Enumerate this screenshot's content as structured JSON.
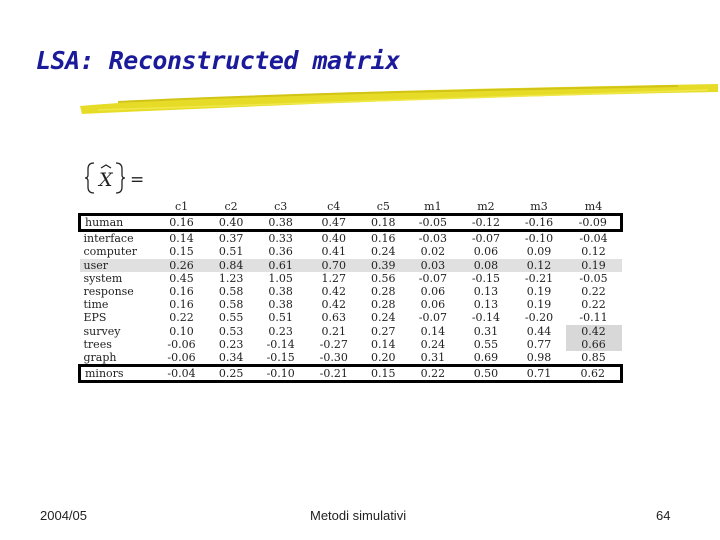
{
  "slide": {
    "title": "LSA: Reconstructed matrix",
    "formula_symbol": "X",
    "formula_rhs": "="
  },
  "table": {
    "columns": [
      "c1",
      "c2",
      "c3",
      "c4",
      "c5",
      "m1",
      "m2",
      "m3",
      "m4"
    ],
    "rows": [
      {
        "term": "human",
        "values": [
          "0.16",
          "0.40",
          "0.38",
          "0.47",
          "0.18",
          "-0.05",
          "-0.12",
          "-0.16",
          "-0.09"
        ]
      },
      {
        "term": "interface",
        "values": [
          "0.14",
          "0.37",
          "0.33",
          "0.40",
          "0.16",
          "-0.03",
          "-0.07",
          "-0.10",
          "-0.04"
        ]
      },
      {
        "term": "computer",
        "values": [
          "0.15",
          "0.51",
          "0.36",
          "0.41",
          "0.24",
          "0.02",
          "0.06",
          "0.09",
          "0.12"
        ]
      },
      {
        "term": "user",
        "values": [
          "0.26",
          "0.84",
          "0.61",
          "0.70",
          "0.39",
          "0.03",
          "0.08",
          "0.12",
          "0.19"
        ]
      },
      {
        "term": "system",
        "values": [
          "0.45",
          "1.23",
          "1.05",
          "1.27",
          "0.56",
          "-0.07",
          "-0.15",
          "-0.21",
          "-0.05"
        ]
      },
      {
        "term": "response",
        "values": [
          "0.16",
          "0.58",
          "0.38",
          "0.42",
          "0.28",
          "0.06",
          "0.13",
          "0.19",
          "0.22"
        ]
      },
      {
        "term": "time",
        "values": [
          "0.16",
          "0.58",
          "0.38",
          "0.42",
          "0.28",
          "0.06",
          "0.13",
          "0.19",
          "0.22"
        ]
      },
      {
        "term": "EPS",
        "values": [
          "0.22",
          "0.55",
          "0.51",
          "0.63",
          "0.24",
          "-0.07",
          "-0.14",
          "-0.20",
          "-0.11"
        ]
      },
      {
        "term": "survey",
        "values": [
          "0.10",
          "0.53",
          "0.23",
          "0.21",
          "0.27",
          "0.14",
          "0.31",
          "0.44",
          "0.42"
        ]
      },
      {
        "term": "trees",
        "values": [
          "-0.06",
          "0.23",
          "-0.14",
          "-0.27",
          "0.14",
          "0.24",
          "0.55",
          "0.77",
          "0.66"
        ]
      },
      {
        "term": "graph",
        "values": [
          "-0.06",
          "0.34",
          "-0.15",
          "-0.30",
          "0.20",
          "0.31",
          "0.69",
          "0.98",
          "0.85"
        ]
      },
      {
        "term": "minors",
        "values": [
          "-0.04",
          "0.25",
          "-0.10",
          "-0.21",
          "0.15",
          "0.22",
          "0.50",
          "0.71",
          "0.62"
        ]
      }
    ]
  },
  "footer": {
    "left": "2004/05",
    "center": "Metodi simulativi",
    "right": "64"
  },
  "colors": {
    "title": "#1a1a9a",
    "underline": "#e6dc28",
    "row_shading": "#e0e0e0"
  }
}
